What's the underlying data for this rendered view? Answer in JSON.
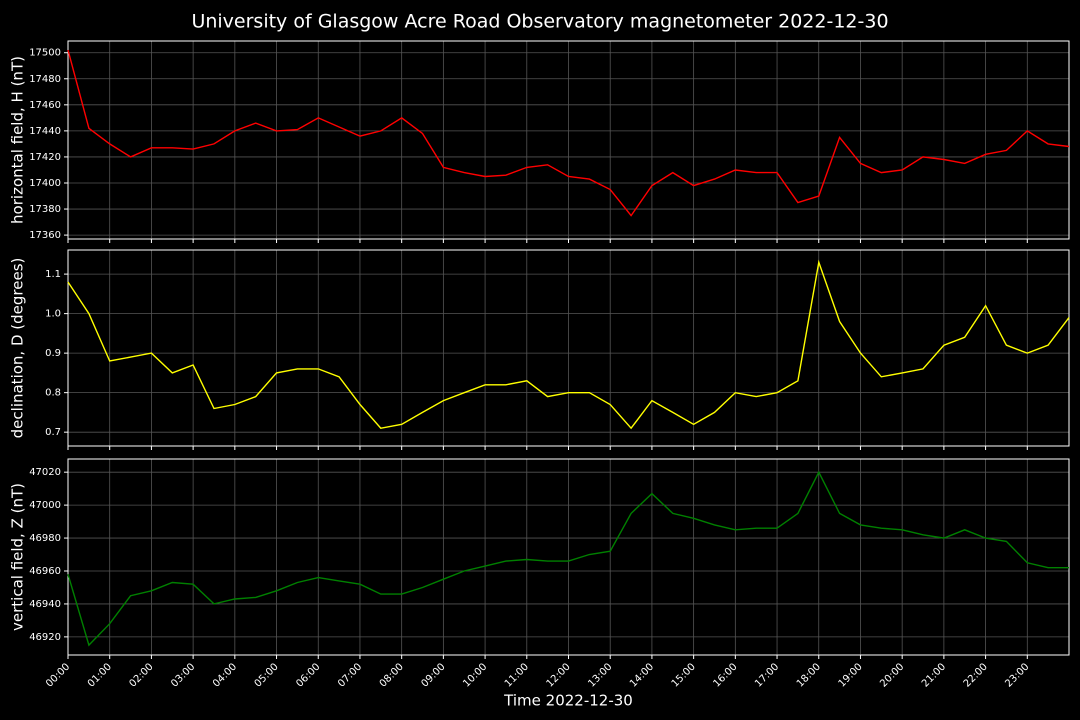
{
  "title": "University of Glasgow Acre Road Observatory magnetometer 2022-12-30",
  "chart_data": [
    {
      "type": "line",
      "ylabel": "horizontal field, H (nT)",
      "color": "#ff0000",
      "x": [
        0,
        0.5,
        1,
        1.5,
        2,
        2.5,
        3,
        3.5,
        4,
        4.5,
        5,
        5.5,
        6,
        6.5,
        7,
        7.5,
        8,
        8.5,
        9,
        9.5,
        10,
        10.5,
        11,
        11.5,
        12,
        12.5,
        13,
        13.5,
        14,
        14.5,
        15,
        15.5,
        16,
        16.5,
        17,
        17.5,
        18,
        18.5,
        19,
        19.5,
        20,
        20.5,
        21,
        21.5,
        22,
        22.5,
        23,
        23.5,
        24
      ],
      "values": [
        17502,
        17442,
        17430,
        17420,
        17427,
        17427,
        17426,
        17430,
        17440,
        17446,
        17440,
        17441,
        17450,
        17443,
        17436,
        17440,
        17450,
        17438,
        17412,
        17408,
        17405,
        17406,
        17412,
        17414,
        17405,
        17403,
        17395,
        17375,
        17398,
        17408,
        17398,
        17403,
        17410,
        17408,
        17408,
        17385,
        17390,
        17435,
        17415,
        17408,
        17410,
        17420,
        17418,
        17415,
        17422,
        17425,
        17440,
        17430,
        17428
      ],
      "xlim": [
        0,
        24
      ],
      "xticks": [
        0,
        1,
        2,
        3,
        4,
        5,
        6,
        7,
        8,
        9,
        10,
        11,
        12,
        13,
        14,
        15,
        16,
        17,
        18,
        19,
        20,
        21,
        22,
        23
      ],
      "ylim": [
        17357,
        17509
      ],
      "yticks": [
        17360,
        17380,
        17400,
        17420,
        17440,
        17460,
        17480,
        17500
      ],
      "grid": true
    },
    {
      "type": "line",
      "ylabel": "declination, D (degrees)",
      "color": "#ffff00",
      "x": [
        0,
        0.5,
        1,
        1.5,
        2,
        2.5,
        3,
        3.5,
        4,
        4.5,
        5,
        5.5,
        6,
        6.5,
        7,
        7.5,
        8,
        8.5,
        9,
        9.5,
        10,
        10.5,
        11,
        11.5,
        12,
        12.5,
        13,
        13.5,
        14,
        14.5,
        15,
        15.5,
        16,
        16.5,
        17,
        17.5,
        18,
        18.5,
        19,
        19.5,
        20,
        20.5,
        21,
        21.5,
        22,
        22.5,
        23,
        23.5,
        24
      ],
      "values": [
        1.08,
        1.0,
        0.88,
        0.89,
        0.9,
        0.85,
        0.87,
        0.76,
        0.77,
        0.79,
        0.85,
        0.86,
        0.86,
        0.84,
        0.77,
        0.71,
        0.72,
        0.75,
        0.78,
        0.8,
        0.82,
        0.82,
        0.83,
        0.79,
        0.8,
        0.8,
        0.77,
        0.71,
        0.78,
        0.75,
        0.72,
        0.75,
        0.8,
        0.79,
        0.8,
        0.83,
        1.13,
        0.98,
        0.9,
        0.84,
        0.85,
        0.86,
        0.92,
        0.94,
        1.02,
        0.92,
        0.9,
        0.92,
        0.99
      ],
      "xlim": [
        0,
        24
      ],
      "xticks": [
        0,
        1,
        2,
        3,
        4,
        5,
        6,
        7,
        8,
        9,
        10,
        11,
        12,
        13,
        14,
        15,
        16,
        17,
        18,
        19,
        20,
        21,
        22,
        23
      ],
      "ylim": [
        0.665,
        1.161
      ],
      "yticks": [
        0.7,
        0.8,
        0.9,
        {
          "value": 1,
          "label": "1.0"
        },
        1.1
      ],
      "grid": true
    },
    {
      "type": "line",
      "ylabel": "vertical field, Z (nT)",
      "xlabel": "Time 2022-12-30",
      "color": "#008000",
      "x": [
        0,
        0.5,
        1,
        1.5,
        2,
        2.5,
        3,
        3.5,
        4,
        4.5,
        5,
        5.5,
        6,
        6.5,
        7,
        7.5,
        8,
        8.5,
        9,
        9.5,
        10,
        10.5,
        11,
        11.5,
        12,
        12.5,
        13,
        13.5,
        14,
        14.5,
        15,
        15.5,
        16,
        16.5,
        17,
        17.5,
        18,
        18.5,
        19,
        19.5,
        20,
        20.5,
        21,
        21.5,
        22,
        22.5,
        23,
        23.5,
        24
      ],
      "values": [
        46958,
        46915,
        46928,
        46945,
        46948,
        46953,
        46952,
        46940,
        46943,
        46944,
        46948,
        46953,
        46956,
        46954,
        46952,
        46946,
        46946,
        46950,
        46955,
        46960,
        46963,
        46966,
        46967,
        46966,
        46966,
        46970,
        46972,
        46995,
        47007,
        46995,
        46992,
        46988,
        46985,
        46986,
        46986,
        46995,
        47020,
        46995,
        46988,
        46986,
        46985,
        46982,
        46980,
        46985,
        46980,
        46978,
        46965,
        46962,
        46962
      ],
      "xlim": [
        0,
        24
      ],
      "xticks": [
        {
          "value": 0,
          "label": "00:00"
        },
        {
          "value": 1,
          "label": "01:00"
        },
        {
          "value": 2,
          "label": "02:00"
        },
        {
          "value": 3,
          "label": "03:00"
        },
        {
          "value": 4,
          "label": "04:00"
        },
        {
          "value": 5,
          "label": "05:00"
        },
        {
          "value": 6,
          "label": "06:00"
        },
        {
          "value": 7,
          "label": "07:00"
        },
        {
          "value": 8,
          "label": "08:00"
        },
        {
          "value": 9,
          "label": "09:00"
        },
        {
          "value": 10,
          "label": "10:00"
        },
        {
          "value": 11,
          "label": "11:00"
        },
        {
          "value": 12,
          "label": "12:00"
        },
        {
          "value": 13,
          "label": "13:00"
        },
        {
          "value": 14,
          "label": "14:00"
        },
        {
          "value": 15,
          "label": "15:00"
        },
        {
          "value": 16,
          "label": "16:00"
        },
        {
          "value": 17,
          "label": "17:00"
        },
        {
          "value": 18,
          "label": "18:00"
        },
        {
          "value": 19,
          "label": "19:00"
        },
        {
          "value": 20,
          "label": "20:00"
        },
        {
          "value": 21,
          "label": "21:00"
        },
        {
          "value": 22,
          "label": "22:00"
        },
        {
          "value": 23,
          "label": "23:00"
        }
      ],
      "ylim": [
        46909,
        47028
      ],
      "yticks": [
        46920,
        46940,
        46960,
        46980,
        47000,
        47020
      ],
      "grid": true
    }
  ]
}
